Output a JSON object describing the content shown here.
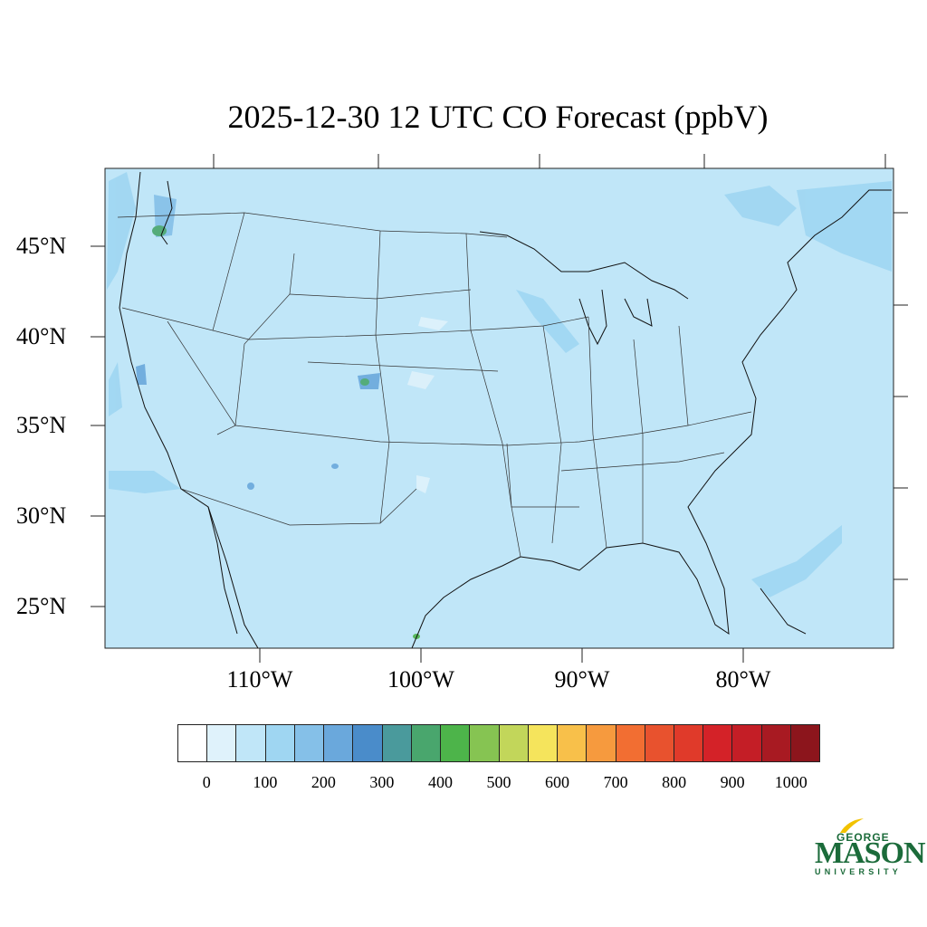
{
  "title": "2025-12-30 12 UTC CO Forecast (ppbV)",
  "map": {
    "lat_labels": [
      "45°N",
      "40°N",
      "35°N",
      "30°N",
      "25°N"
    ],
    "lon_labels": [
      "110°W",
      "100°W",
      "90°W",
      "80°W"
    ],
    "background_color": "#c0e6f8",
    "border_color": "#222222"
  },
  "colorbar": {
    "colors": [
      "#ffffff",
      "#dff2fb",
      "#c0e6f8",
      "#9fd6f2",
      "#85c0e8",
      "#6aa8dc",
      "#4a8cca",
      "#4a9a9c",
      "#49a66d",
      "#4db44a",
      "#86c452",
      "#c2d65a",
      "#f5e45c",
      "#f8c04a",
      "#f69a3e",
      "#f26e32",
      "#e8522e",
      "#e03a2a",
      "#d42228",
      "#c41e26",
      "#a81a22",
      "#8c151c"
    ],
    "tick_labels": [
      "0",
      "100",
      "200",
      "300",
      "400",
      "500",
      "600",
      "700",
      "800",
      "900",
      "1000"
    ]
  },
  "logo": {
    "line1": "GEORGE",
    "line2": "MASON",
    "line3": "UNIVERSITY",
    "color": "#1b6b3a",
    "accent": "#f2c200"
  }
}
